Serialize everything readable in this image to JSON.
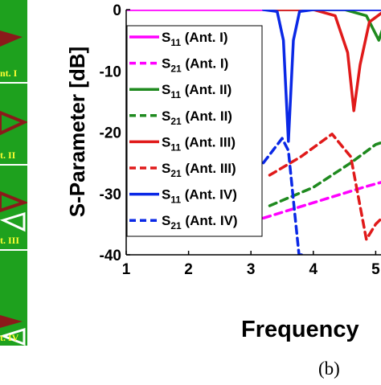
{
  "left_panel": {
    "labels": [
      "nt. I",
      "t. II",
      "t. III",
      "t. IV"
    ],
    "colors": {
      "green": "#1ea11e",
      "shape": "#8b1a1a",
      "divider": "#ffffff"
    }
  },
  "panel_label": "(b)",
  "chart_data": {
    "type": "line",
    "xlabel": "Frequency",
    "ylabel": "S-Parameter [dB]",
    "xlim": [
      1,
      5.5
    ],
    "ylim": [
      -40,
      0
    ],
    "xticks": [
      "1",
      "2",
      "3",
      "4",
      "5"
    ],
    "yticks": [
      "0",
      "-10",
      "-20",
      "-30",
      "-40"
    ],
    "grid": false,
    "legend_position": "left-inside",
    "series": [
      {
        "name": "S11 (Ant. I)",
        "sub": "11",
        "ant": "(Ant. I)",
        "color": "#ff00ff",
        "dash": "solid",
        "points": [
          [
            1,
            0
          ],
          [
            5.5,
            0
          ]
        ]
      },
      {
        "name": "S21 (Ant. I)",
        "sub": "21",
        "ant": "(Ant. I)",
        "color": "#ff00ff",
        "dash": "dashed",
        "points": [
          [
            3.2,
            -34
          ],
          [
            4,
            -31.5
          ],
          [
            4.8,
            -29
          ],
          [
            5.5,
            -27
          ]
        ]
      },
      {
        "name": "S11 (Ant. II)",
        "sub": "11",
        "ant": "(Ant. II)",
        "color": "#1f8a1f",
        "dash": "solid",
        "points": [
          [
            3.3,
            0
          ],
          [
            4.5,
            0
          ],
          [
            4.85,
            -1
          ],
          [
            5.05,
            -5
          ],
          [
            5.15,
            -2
          ],
          [
            5.3,
            -1
          ],
          [
            5.5,
            -0.5
          ]
        ]
      },
      {
        "name": "S21 (Ant. II)",
        "sub": "21",
        "ant": "(Ant. II)",
        "color": "#1f8a1f",
        "dash": "dashed",
        "points": [
          [
            3.3,
            -32
          ],
          [
            4,
            -29
          ],
          [
            4.6,
            -25
          ],
          [
            5,
            -22
          ],
          [
            5.3,
            -21
          ]
        ]
      },
      {
        "name": "S11 (Ant. III)",
        "sub": "11",
        "ant": "(Ant. III)",
        "color": "#e01a1a",
        "dash": "solid",
        "points": [
          [
            3.3,
            0
          ],
          [
            4,
            0
          ],
          [
            4.35,
            -1
          ],
          [
            4.55,
            -7
          ],
          [
            4.65,
            -16.5
          ],
          [
            4.75,
            -9
          ],
          [
            4.9,
            -2
          ],
          [
            5.1,
            -0.5
          ],
          [
            5.3,
            0
          ]
        ]
      },
      {
        "name": "S21 (Ant. III)",
        "sub": "21",
        "ant": "(Ant. III)",
        "color": "#e01a1a",
        "dash": "dashed",
        "points": [
          [
            3.3,
            -27
          ],
          [
            3.8,
            -24
          ],
          [
            4.3,
            -20.3
          ],
          [
            4.6,
            -24
          ],
          [
            4.85,
            -37.5
          ],
          [
            5,
            -35
          ],
          [
            5.2,
            -33
          ],
          [
            5.5,
            -31
          ]
        ]
      },
      {
        "name": "S11 (Ant. IV)",
        "sub": "11",
        "ant": "(Ant. IV)",
        "color": "#0a28e6",
        "dash": "solid",
        "points": [
          [
            3.2,
            0
          ],
          [
            3.42,
            -0.3
          ],
          [
            3.52,
            -5
          ],
          [
            3.6,
            -21.5
          ],
          [
            3.68,
            -5
          ],
          [
            3.78,
            -0.3
          ],
          [
            4,
            0
          ],
          [
            5.5,
            0
          ]
        ]
      },
      {
        "name": "S21 (Ant. IV)",
        "sub": "21",
        "ant": "(Ant. IV)",
        "color": "#0a28e6",
        "dash": "dashed",
        "points": [
          [
            3.2,
            -25
          ],
          [
            3.5,
            -21
          ],
          [
            3.6,
            -23
          ],
          [
            3.7,
            -33
          ],
          [
            3.77,
            -40
          ],
          [
            3.82,
            -40
          ]
        ]
      }
    ]
  }
}
